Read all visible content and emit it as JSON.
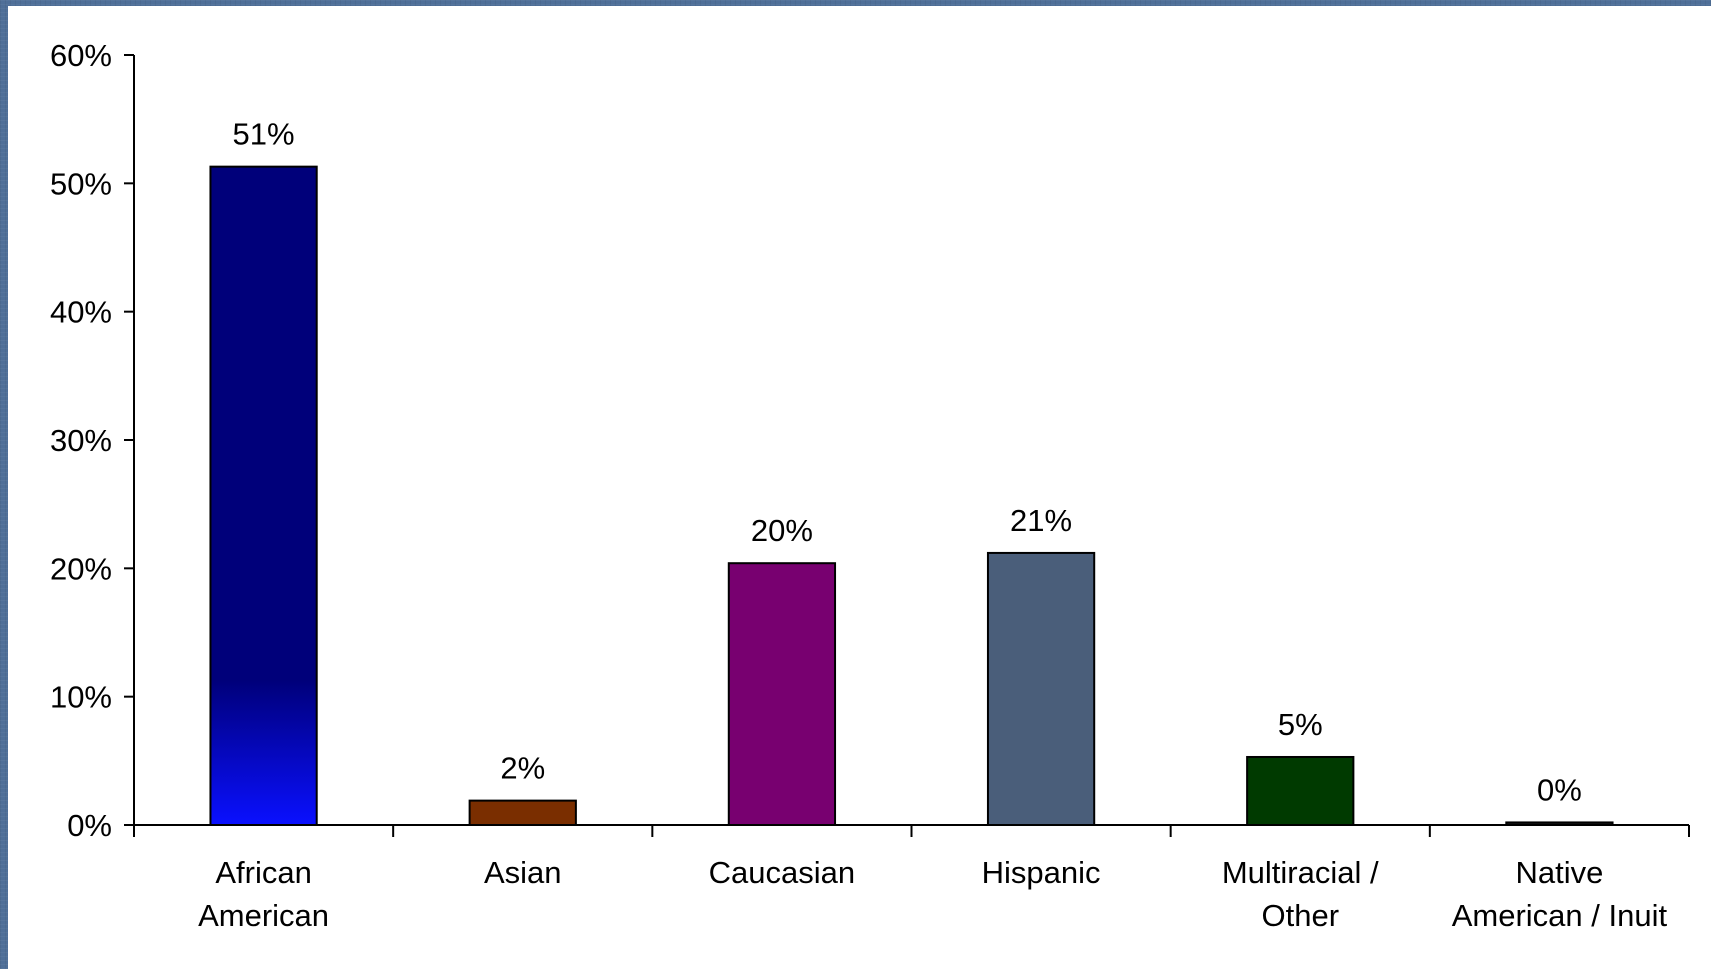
{
  "chart_data": {
    "type": "bar",
    "title": "",
    "xlabel": "",
    "ylabel": "",
    "ylim": [
      0,
      60
    ],
    "y_ticks": [
      "0%",
      "10%",
      "20%",
      "30%",
      "40%",
      "50%",
      "60%"
    ],
    "y_tick_values": [
      0,
      10,
      20,
      30,
      40,
      50,
      60
    ],
    "categories": [
      [
        "African",
        "American"
      ],
      [
        "Asian"
      ],
      [
        "Caucasian"
      ],
      [
        "Hispanic"
      ],
      [
        "Multiracial /",
        "Other"
      ],
      [
        "Native",
        "American / Inuit"
      ]
    ],
    "values": [
      51.3,
      1.9,
      20.4,
      21.2,
      5.3,
      0.2
    ],
    "data_labels": [
      "51%",
      "2%",
      "20%",
      "21%",
      "5%",
      "0%"
    ],
    "bar_colors": [
      "#00007a",
      "#7a2e00",
      "#780070",
      "#4a5e7a",
      "#003a00",
      "#1a1a1a"
    ],
    "first_bar_gradient_bottom": "#0a10ff",
    "grid": false,
    "legend": "none"
  },
  "colors": {
    "background": "#4f6f98",
    "plot_area": "#ffffff",
    "axis": "#000000"
  }
}
